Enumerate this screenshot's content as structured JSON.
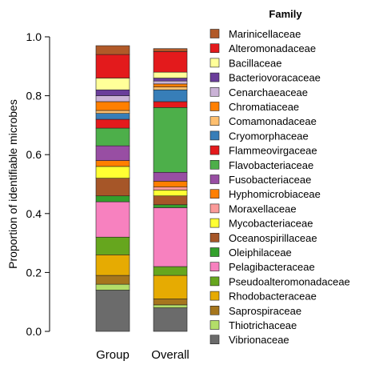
{
  "chart_data": {
    "type": "bar",
    "stacked": true,
    "title": "",
    "xlabel": "",
    "ylabel": "Proportion of identifiable microbes",
    "ylim": [
      0,
      1
    ],
    "yticks": [
      "0.0",
      "0.2",
      "0.4",
      "0.6",
      "0.8",
      "1.0"
    ],
    "categories": [
      "Group",
      "Overall"
    ],
    "legend_title": "Family",
    "legend_position": "right",
    "series": [
      {
        "name": "Vibrionaceae",
        "color": "#6b6b6b",
        "values": [
          0.14,
          0.08
        ]
      },
      {
        "name": "Thiotrichaceae",
        "color": "#b3de69",
        "values": [
          0.02,
          0.01
        ]
      },
      {
        "name": "Saprospiraceae",
        "color": "#a6761d",
        "values": [
          0.03,
          0.02
        ]
      },
      {
        "name": "Rhodobacteraceae",
        "color": "#e6ab02",
        "values": [
          0.07,
          0.08
        ]
      },
      {
        "name": "Pseudoalteromonadaceae",
        "color": "#66a61e",
        "values": [
          0.06,
          0.03
        ]
      },
      {
        "name": "Pelagibacteraceae",
        "color": "#f781bf",
        "values": [
          0.12,
          0.2
        ]
      },
      {
        "name": "Oleiphilaceae",
        "color": "#33a02c",
        "values": [
          0.02,
          0.01
        ]
      },
      {
        "name": "Oceanospirillaceae",
        "color": "#a65628",
        "values": [
          0.06,
          0.03
        ]
      },
      {
        "name": "Mycobacteriaceae",
        "color": "#ffff33",
        "values": [
          0.04,
          0.02
        ]
      },
      {
        "name": "Moraxellaceae",
        "color": "#fb9a99",
        "values": [
          0.0,
          0.01
        ]
      },
      {
        "name": "Hyphomicrobiaceae",
        "color": "#ff7f00",
        "values": [
          0.02,
          0.02
        ]
      },
      {
        "name": "Fusobacteriaceae",
        "color": "#984ea3",
        "values": [
          0.05,
          0.03
        ]
      },
      {
        "name": "Flavobacteriaceae",
        "color": "#4daf4a",
        "values": [
          0.06,
          0.22
        ]
      },
      {
        "name": "Flammeovirgaceae",
        "color": "#e41a1c",
        "values": [
          0.03,
          0.02
        ]
      },
      {
        "name": "Cryomorphaceae",
        "color": "#377eb8",
        "values": [
          0.02,
          0.04
        ]
      },
      {
        "name": "Comamonadaceae",
        "color": "#fdbf6f",
        "values": [
          0.01,
          0.01
        ]
      },
      {
        "name": "Chromatiaceae",
        "color": "#ff7f00",
        "values": [
          0.03,
          0.01
        ]
      },
      {
        "name": "Cenarchaeaceae",
        "color": "#cab2d6",
        "values": [
          0.02,
          0.01
        ]
      },
      {
        "name": "Bacteriovoracaceae",
        "color": "#6a3d9a",
        "values": [
          0.02,
          0.01
        ]
      },
      {
        "name": "Bacillaceae",
        "color": "#ffff99",
        "values": [
          0.04,
          0.02
        ]
      },
      {
        "name": "Alteromonadaceae",
        "color": "#e31a1c",
        "values": [
          0.08,
          0.07
        ]
      },
      {
        "name": "Marinicellaceae",
        "color": "#b15928",
        "values": [
          0.03,
          0.01
        ]
      }
    ]
  }
}
